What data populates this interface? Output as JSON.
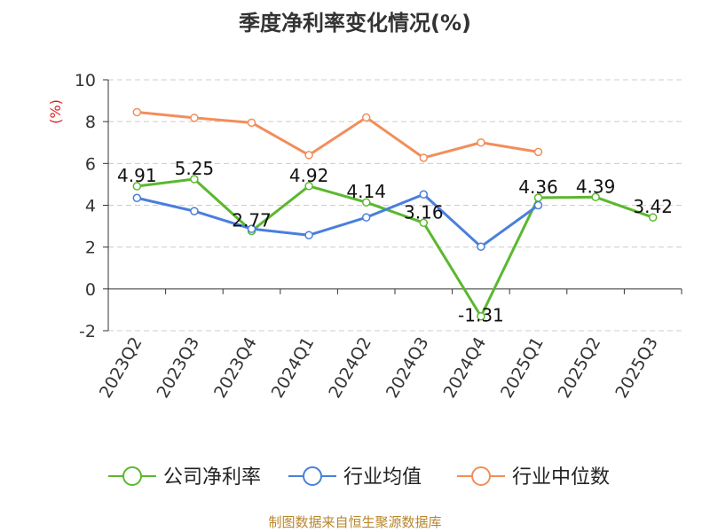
{
  "chart_data": {
    "type": "line",
    "title": "季度净利率变化情况(%)",
    "ylabel": "(%)",
    "xlabel": "",
    "categories": [
      "2023Q2",
      "2023Q3",
      "2023Q4",
      "2024Q1",
      "2024Q2",
      "2024Q3",
      "2024Q4",
      "2025Q1",
      "2025Q2",
      "2025Q3"
    ],
    "ylim": [
      -2,
      10
    ],
    "yticks": [
      -2,
      0,
      2,
      4,
      6,
      8,
      10
    ],
    "grid": true,
    "legend_position": "bottom",
    "series": [
      {
        "name": "公司净利率",
        "color": "#5ab82e",
        "labeled": true,
        "values": [
          4.91,
          5.25,
          2.77,
          4.92,
          4.14,
          3.16,
          -1.31,
          4.36,
          4.39,
          3.42
        ],
        "labels": [
          "4.91",
          "5.25",
          "2.77",
          "4.92",
          "4.14",
          "3.16",
          "-1.31",
          "4.36",
          "4.39",
          "3.42"
        ]
      },
      {
        "name": "行业均值",
        "color": "#4a7fdc",
        "labeled": false,
        "values": [
          4.35,
          3.72,
          2.87,
          2.57,
          3.42,
          4.52,
          2.02,
          4.0,
          null,
          null
        ]
      },
      {
        "name": "行业中位数",
        "color": "#f28e5a",
        "labeled": false,
        "values": [
          8.45,
          8.18,
          7.95,
          6.4,
          8.2,
          6.27,
          7.0,
          6.55,
          null,
          null
        ]
      }
    ]
  },
  "source_text": "制图数据来自恒生聚源数据库"
}
